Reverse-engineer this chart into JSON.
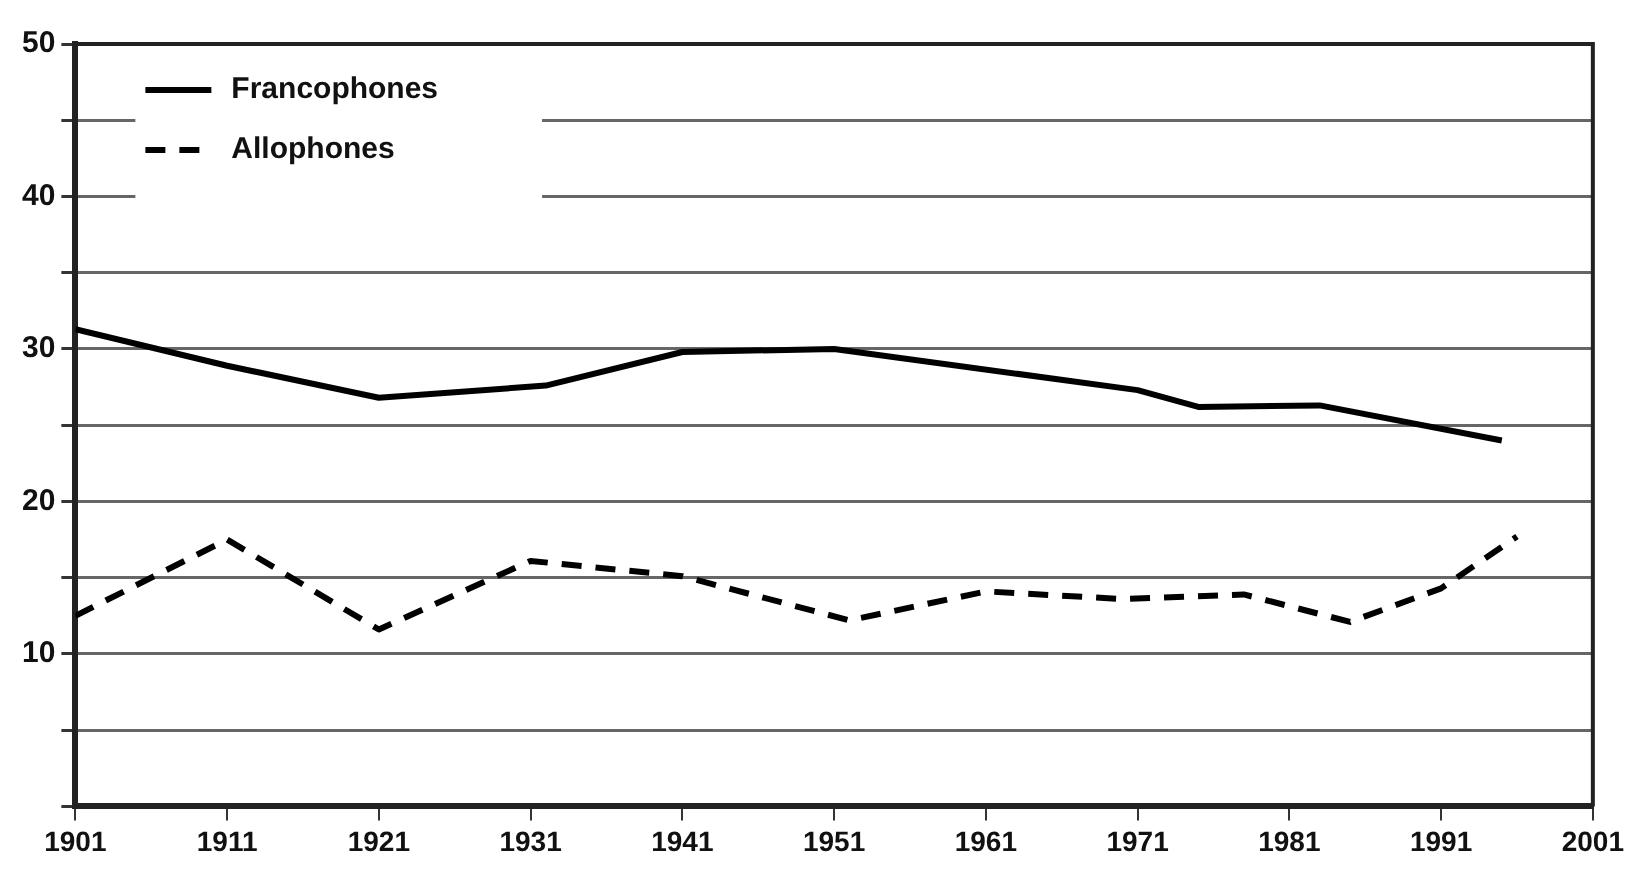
{
  "chart_data": {
    "type": "line",
    "legend": "top left",
    "grid": "y",
    "xlim": [
      1901,
      2001
    ],
    "xticks": [
      1901,
      1911,
      1921,
      1931,
      1941,
      1951,
      1961,
      1971,
      1981,
      1991,
      2001
    ],
    "ylim": [
      0,
      50
    ],
    "yticks": [
      {
        "value": 0,
        "label": null
      },
      {
        "value": 5,
        "label": null
      },
      10,
      {
        "value": 15,
        "label": null
      },
      20,
      {
        "value": 25,
        "label": null
      },
      30,
      {
        "value": 35,
        "label": null
      },
      40,
      {
        "value": 45,
        "label": null
      },
      50
    ],
    "series": [
      {
        "name": "Francophones",
        "color": "#000000",
        "line_style": "solid",
        "x": [
          1901,
          1911,
          1921,
          1932,
          1941,
          1951,
          1971,
          1975,
          1983,
          1995
        ],
        "values": [
          31.3,
          28.9,
          26.8,
          27.6,
          29.8,
          30.0,
          27.3,
          26.2,
          26.3,
          24.0
        ]
      },
      {
        "name": "Allophones",
        "color": "#000000",
        "line_style": "dashed",
        "x": [
          1901,
          1911,
          1921,
          1931,
          1941,
          1952,
          1961,
          1970,
          1978,
          1985,
          1991,
          1996
        ],
        "values": [
          12.5,
          17.5,
          11.6,
          16.1,
          15.1,
          12.2,
          14.1,
          13.6,
          13.9,
          12.1,
          14.3,
          17.7
        ]
      }
    ]
  }
}
